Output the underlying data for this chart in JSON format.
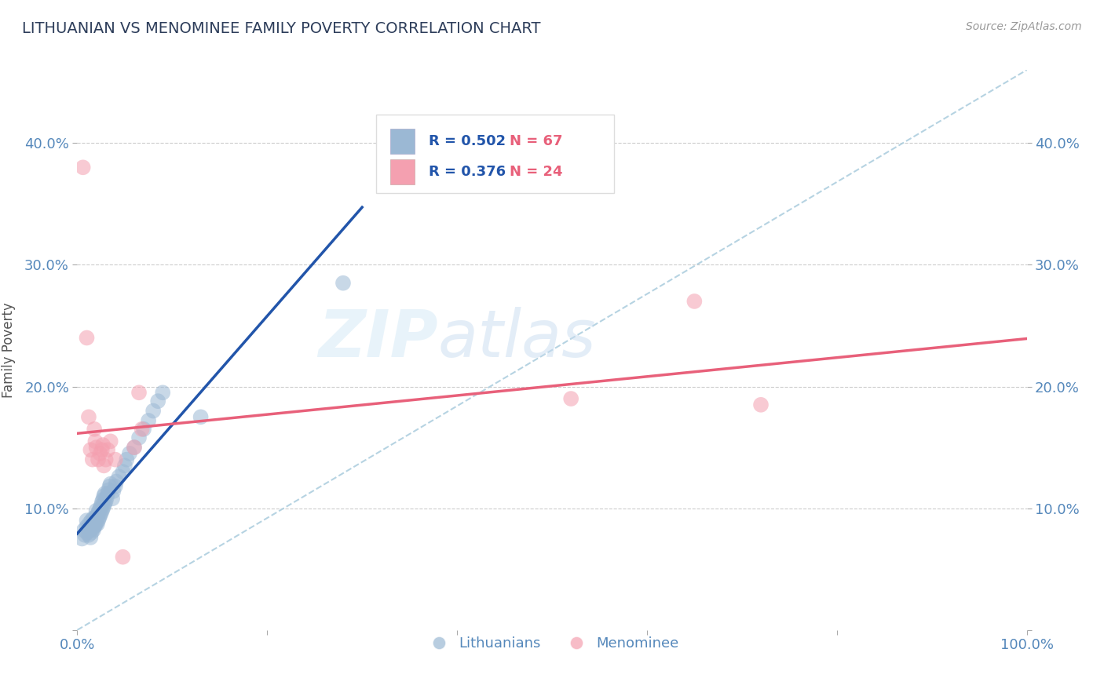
{
  "title": "LITHUANIAN VS MENOMINEE FAMILY POVERTY CORRELATION CHART",
  "source": "Source: ZipAtlas.com",
  "ylabel": "Family Poverty",
  "xlim": [
    0.0,
    1.0
  ],
  "ylim": [
    0.0,
    0.46
  ],
  "xticks": [
    0.0,
    0.2,
    0.4,
    0.6,
    0.8,
    1.0
  ],
  "yticks": [
    0.0,
    0.1,
    0.2,
    0.3,
    0.4
  ],
  "xticklabels_show": [
    "0.0%",
    "",
    "",
    "",
    "",
    "100.0%"
  ],
  "yticklabels_show": [
    "",
    "10.0%",
    "20.0%",
    "30.0%",
    "40.0%"
  ],
  "watermark_zip": "ZIP",
  "watermark_atlas": "atlas",
  "blue_color": "#9BB8D4",
  "pink_color": "#F4A0B0",
  "blue_line_color": "#2255AA",
  "pink_line_color": "#E8607A",
  "diagonal_color": "#AACCDD",
  "title_color": "#2D3D5A",
  "axis_label_color": "#555555",
  "tick_color": "#5588BB",
  "grid_color": "#CCCCCC",
  "legend_box_color": "#DDDDDD",
  "blue_scatter_x": [
    0.005,
    0.007,
    0.008,
    0.01,
    0.01,
    0.01,
    0.012,
    0.013,
    0.013,
    0.014,
    0.015,
    0.015,
    0.015,
    0.016,
    0.016,
    0.017,
    0.017,
    0.017,
    0.018,
    0.018,
    0.019,
    0.019,
    0.02,
    0.02,
    0.02,
    0.021,
    0.021,
    0.022,
    0.022,
    0.023,
    0.023,
    0.024,
    0.024,
    0.025,
    0.025,
    0.026,
    0.026,
    0.027,
    0.027,
    0.028,
    0.028,
    0.029,
    0.029,
    0.03,
    0.031,
    0.032,
    0.033,
    0.034,
    0.035,
    0.037,
    0.038,
    0.04,
    0.041,
    0.044,
    0.048,
    0.05,
    0.052,
    0.055,
    0.06,
    0.065,
    0.07,
    0.075,
    0.08,
    0.085,
    0.09,
    0.13,
    0.28
  ],
  "blue_scatter_y": [
    0.075,
    0.082,
    0.078,
    0.08,
    0.085,
    0.09,
    0.078,
    0.082,
    0.088,
    0.076,
    0.08,
    0.085,
    0.09,
    0.083,
    0.088,
    0.082,
    0.087,
    0.092,
    0.085,
    0.09,
    0.086,
    0.092,
    0.088,
    0.093,
    0.098,
    0.087,
    0.094,
    0.09,
    0.096,
    0.092,
    0.098,
    0.094,
    0.1,
    0.096,
    0.102,
    0.098,
    0.105,
    0.1,
    0.107,
    0.102,
    0.11,
    0.104,
    0.112,
    0.106,
    0.109,
    0.112,
    0.115,
    0.118,
    0.12,
    0.108,
    0.114,
    0.118,
    0.122,
    0.126,
    0.13,
    0.135,
    0.14,
    0.145,
    0.15,
    0.158,
    0.165,
    0.172,
    0.18,
    0.188,
    0.195,
    0.175,
    0.285
  ],
  "pink_scatter_x": [
    0.006,
    0.01,
    0.012,
    0.014,
    0.016,
    0.018,
    0.019,
    0.02,
    0.022,
    0.024,
    0.026,
    0.027,
    0.028,
    0.03,
    0.032,
    0.035,
    0.04,
    0.048,
    0.06,
    0.065,
    0.068,
    0.52,
    0.65,
    0.72
  ],
  "pink_scatter_y": [
    0.38,
    0.24,
    0.175,
    0.148,
    0.14,
    0.165,
    0.155,
    0.15,
    0.14,
    0.145,
    0.148,
    0.152,
    0.135,
    0.14,
    0.148,
    0.155,
    0.14,
    0.06,
    0.15,
    0.195,
    0.165,
    0.19,
    0.27,
    0.185
  ],
  "blue_r": "0.502",
  "blue_n": "67",
  "pink_r": "0.376",
  "pink_n": "24"
}
